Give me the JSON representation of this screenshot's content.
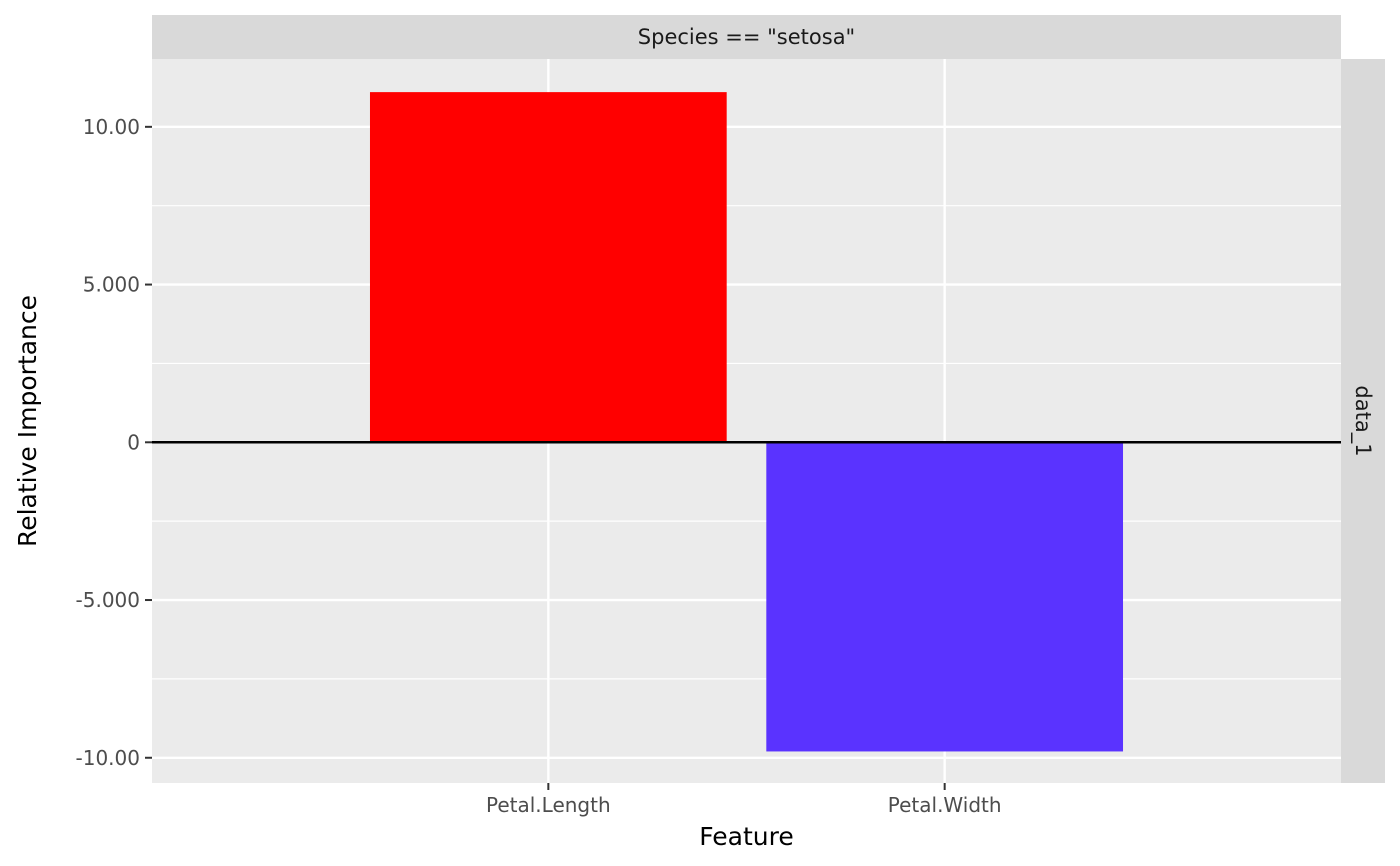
{
  "chart_data": {
    "type": "bar",
    "facet_top": "Species == \"setosa\"",
    "facet_right": "data_1",
    "xlabel": "Feature",
    "ylabel": "Relative Importance",
    "categories": [
      "Petal.Length",
      "Petal.Width"
    ],
    "values": [
      11.1,
      -9.8
    ],
    "bar_colors": [
      "#FF0000",
      "#5A33FF"
    ],
    "ylim": [
      -10.8,
      12.15
    ],
    "y_ticks": [
      -10,
      -5,
      0,
      5,
      10
    ],
    "y_tick_labels": [
      "-10.00",
      "-5.000",
      "0",
      "5.000",
      "10.00"
    ],
    "grid": true,
    "zero_line": true,
    "panel_background": "#EBEBEB",
    "strip_background": "#D9D9D9"
  }
}
